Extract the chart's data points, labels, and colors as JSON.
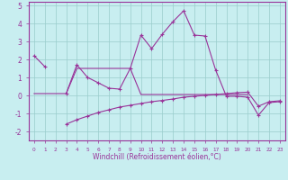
{
  "xlabel": "Windchill (Refroidissement éolien,°C)",
  "x": [
    0,
    1,
    2,
    3,
    4,
    5,
    6,
    7,
    8,
    9,
    10,
    11,
    12,
    13,
    14,
    15,
    16,
    17,
    18,
    19,
    20,
    21,
    22,
    23
  ],
  "line_main": [
    2.2,
    1.6,
    null,
    0.1,
    1.7,
    1.0,
    0.7,
    0.4,
    0.35,
    1.5,
    3.35,
    2.6,
    3.4,
    4.1,
    4.7,
    3.35,
    3.3,
    1.4,
    -0.05,
    -0.05,
    -0.1,
    -1.1,
    -0.4,
    -0.35
  ],
  "line_flat": [
    0.1,
    0.1,
    0.1,
    0.1,
    1.5,
    1.5,
    1.5,
    1.5,
    1.5,
    1.5,
    0.05,
    0.05,
    0.05,
    0.05,
    0.05,
    0.05,
    0.05,
    0.05,
    0.05,
    0.05,
    0.05,
    null,
    null,
    null
  ],
  "line_diag": [
    null,
    null,
    null,
    -1.6,
    -1.35,
    -1.15,
    -0.95,
    -0.8,
    -0.65,
    -0.55,
    -0.45,
    -0.35,
    -0.28,
    -0.2,
    -0.1,
    -0.05,
    0.0,
    0.05,
    0.1,
    0.15,
    0.18,
    -0.6,
    -0.35,
    -0.3
  ],
  "color": "#993399",
  "bg_color": "#c8eef0",
  "grid_color": "#99cccc",
  "ylim": [
    -2.5,
    5.2
  ],
  "xlim": [
    -0.5,
    23.5
  ],
  "yticks": [
    -2,
    -1,
    0,
    1,
    2,
    3,
    4,
    5
  ],
  "xticks": [
    0,
    1,
    2,
    3,
    4,
    5,
    6,
    7,
    8,
    9,
    10,
    11,
    12,
    13,
    14,
    15,
    16,
    17,
    18,
    19,
    20,
    21,
    22,
    23
  ]
}
